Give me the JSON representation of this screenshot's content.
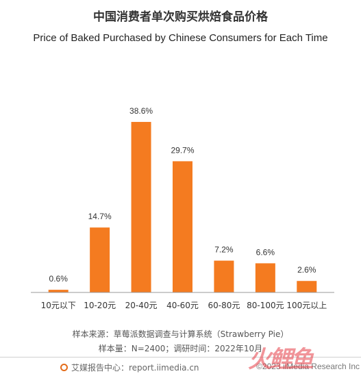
{
  "header": {
    "title_cn": "中国消费者单次购买烘焙食品价格",
    "title_en": "Price of Baked Purchased by Chinese Consumers for Each Time"
  },
  "chart_data": {
    "type": "bar",
    "title": "中国消费者单次购买烘焙食品价格",
    "subtitle": "Price of Baked Purchased by Chinese Consumers for Each Time",
    "categories": [
      "10元以下",
      "10-20元",
      "20-40元",
      "40-60元",
      "60-80元",
      "80-100元",
      "100元以上"
    ],
    "values": [
      0.6,
      14.7,
      38.6,
      29.7,
      7.2,
      6.6,
      2.6
    ],
    "value_labels": [
      "0.6%",
      "14.7%",
      "38.6%",
      "29.7%",
      "7.2%",
      "6.6%",
      "2.6%"
    ],
    "unit": "%",
    "ylim": [
      0,
      40
    ],
    "grid": false,
    "legend": "none",
    "bar_color": "#f47b20"
  },
  "notes": {
    "source": "样本来源：草莓派数据调查与计算系统（Strawberry Pie）",
    "sample": "样本量：N=2400；调研时间：2022年10月"
  },
  "footer": {
    "left": "艾媒报告中心：report.iimedia.cn",
    "right": "©2023 iiMedia Research Inc",
    "icon": "iimedia-logo-icon"
  },
  "watermark": "火鲤鱼",
  "colors": {
    "bar": "#f47b20",
    "axis": "#999999",
    "brand": "#e36c1a"
  }
}
